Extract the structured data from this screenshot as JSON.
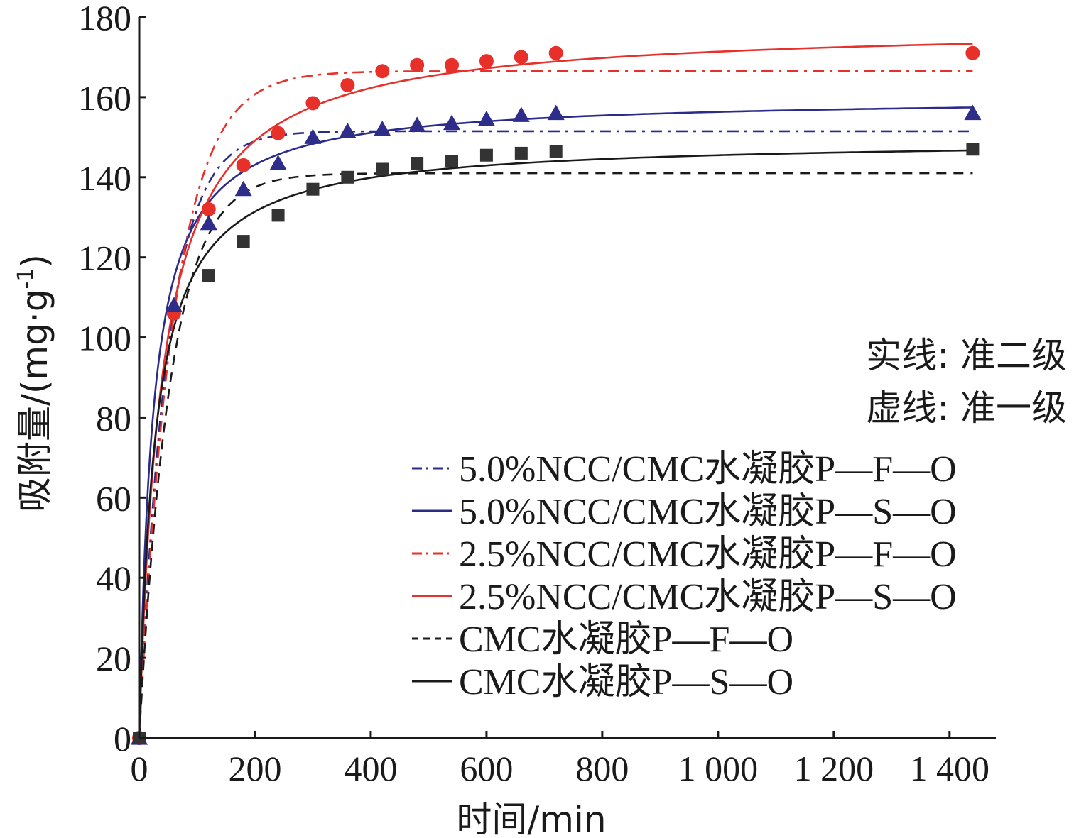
{
  "chart_data": {
    "type": "line",
    "xlabel": "时间/min",
    "ylabel": "吸附量/(mg·g",
    "ylabel_sup": "-1",
    "ylabel_end": ")",
    "xlim": [
      0,
      1480
    ],
    "ylim": [
      0,
      180
    ],
    "x_ticks": [
      0,
      200,
      400,
      600,
      800,
      1000,
      1200,
      1400
    ],
    "x_tick_labels": [
      "0",
      "200",
      "400",
      "600",
      "800",
      "1 000",
      "1 200",
      "1 400"
    ],
    "y_ticks": [
      0,
      20,
      40,
      60,
      80,
      100,
      120,
      140,
      160,
      180
    ],
    "y_tick_labels": [
      "0",
      "20",
      "40",
      "60",
      "80",
      "100",
      "120",
      "140",
      "160",
      "180"
    ],
    "grid": false,
    "legend_position": "bottom-right",
    "notes": [
      "实线: 准二级",
      "虚线: 准一级"
    ],
    "series": [
      {
        "name": "5.0%NCC/CMC水凝胶P—F—O",
        "kind": "fit",
        "model": "pfo",
        "color": "#2b2b8c",
        "dash": "dashdot",
        "qe": 151.5,
        "k": 0.0205,
        "marker_series": 1
      },
      {
        "name": "5.0%NCC/CMC水凝胶P—S—O",
        "kind": "fit",
        "model": "pso",
        "color": "#2b2b8c",
        "dash": "solid",
        "qe": 160.0,
        "k": 0.000265,
        "marker": "triangle"
      },
      {
        "name": "2.5%NCC/CMC水凝胶P—F—O",
        "kind": "fit",
        "model": "pfo",
        "color": "#e8302a",
        "dash": "dashdot",
        "qe": 166.5,
        "k": 0.0168
      },
      {
        "name": "2.5%NCC/CMC水凝胶P—S—O",
        "kind": "fit",
        "model": "pso",
        "color": "#e8302a",
        "dash": "solid",
        "qe": 178.0,
        "k": 0.000145,
        "marker": "circle"
      },
      {
        "name": "CMC水凝胶P—F—O",
        "kind": "fit",
        "model": "pfo",
        "color": "#1a1a1a",
        "dash": "dash",
        "qe": 141.0,
        "k": 0.0185
      },
      {
        "name": "CMC水凝胶P—S—O",
        "kind": "fit",
        "model": "pso",
        "color": "#1a1a1a",
        "dash": "solid",
        "qe": 149.5,
        "k": 0.000243,
        "marker": "square"
      }
    ],
    "points": [
      {
        "series_ref": 3,
        "marker": "circle",
        "color": "#e8302a",
        "x": [
          0,
          60,
          120,
          180,
          240,
          300,
          360,
          420,
          480,
          540,
          600,
          660,
          720,
          1440
        ],
        "y": [
          0,
          106,
          132,
          143,
          151,
          158.5,
          163,
          166.5,
          168,
          168,
          169,
          170,
          171,
          171
        ]
      },
      {
        "series_ref": 1,
        "marker": "triangle",
        "color": "#2e2e8a",
        "x": [
          0,
          60,
          120,
          180,
          240,
          300,
          360,
          420,
          480,
          540,
          600,
          660,
          720,
          1440
        ],
        "y": [
          0,
          108,
          128.5,
          137,
          143.5,
          150,
          151.5,
          152,
          153,
          153.5,
          154.5,
          155.5,
          156,
          156
        ]
      },
      {
        "series_ref": 5,
        "marker": "square",
        "color": "#333333",
        "x": [
          0,
          120,
          180,
          240,
          300,
          360,
          420,
          480,
          540,
          600,
          660,
          720,
          1440
        ],
        "y": [
          0,
          115.5,
          124,
          130.5,
          137,
          140,
          142,
          143.5,
          144,
          145.5,
          146,
          146.5,
          147
        ]
      }
    ]
  }
}
